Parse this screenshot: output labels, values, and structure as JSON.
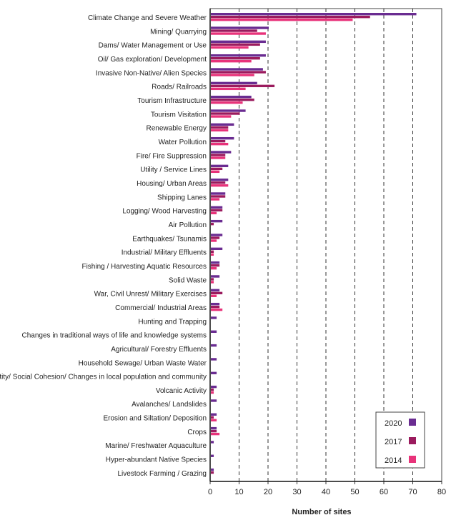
{
  "chart_data": {
    "type": "bar",
    "orientation": "horizontal",
    "xlabel": "Number of sites",
    "xlim": [
      0,
      80
    ],
    "xticks": [
      0,
      10,
      20,
      30,
      40,
      50,
      60,
      70,
      80
    ],
    "grid": "vertical dashed",
    "legend_position": "bottom-right",
    "categories": [
      "Climate Change and Severe Weather",
      "Mining/ Quarrying",
      "Dams/ Water Management or Use",
      "Oil/ Gas exploration/ Development",
      "Invasive Non-Native/ Alien Species",
      "Roads/ Railroads",
      "Tourism Infrastructure",
      "Tourism Visitation",
      "Renewable Energy",
      "Water Pollution",
      "Fire/ Fire Suppression",
      "Utility / Service Lines",
      "Housing/ Urban Areas",
      "Shipping Lanes",
      "Logging/ Wood Harvesting",
      "Air Pollution",
      "Earthquakes/ Tsunamis",
      "Industrial/ Military Effluents",
      "Fishing / Harvesting Aquatic Resources",
      "Solid Waste",
      "War, Civil Unrest/ Military Exercises",
      "Commercial/ Industrial Areas",
      "Hunting and Trapping",
      "Changes in traditional ways of life and knowledge systems",
      "Agricultural/ Forestry Effluents",
      "Household Sewage/ Urban Waste Water",
      "Identity/ Social Cohesion/ Changes in local population and community",
      "Volcanic Activity",
      "Avalanches/ Landslides",
      "Erosion and Siltation/ Deposition",
      "Crops",
      "Marine/ Freshwater Aquaculture",
      "Hyper-abundant Native Species",
      "Livestock Farming / Grazing"
    ],
    "series": [
      {
        "name": "2020",
        "color": "#6a2c91",
        "values": [
          71,
          20,
          19,
          19,
          18,
          16,
          14,
          12,
          8,
          8,
          7,
          6,
          6,
          5,
          4,
          4,
          4,
          4,
          3,
          3,
          3,
          3,
          2,
          2,
          2,
          2,
          2,
          2,
          2,
          2,
          2,
          1,
          1,
          1
        ]
      },
      {
        "name": "2017",
        "color": "#9b1b5e",
        "values": [
          55,
          16,
          17,
          17,
          19,
          22,
          15,
          10,
          6,
          5,
          5,
          4,
          5,
          5,
          4,
          1,
          3,
          1,
          3,
          1,
          4,
          3,
          0,
          0,
          0,
          0,
          0,
          1,
          0,
          1,
          2,
          0,
          0,
          1
        ]
      },
      {
        "name": "2014",
        "color": "#e8337a",
        "values": [
          49,
          19,
          13,
          14,
          15,
          12,
          11,
          7,
          6,
          6,
          5,
          3,
          6,
          3,
          2,
          0,
          2,
          1,
          2,
          1,
          2,
          4,
          0,
          0,
          0,
          0,
          0,
          1,
          0,
          2,
          3,
          0,
          0,
          0
        ]
      }
    ]
  }
}
